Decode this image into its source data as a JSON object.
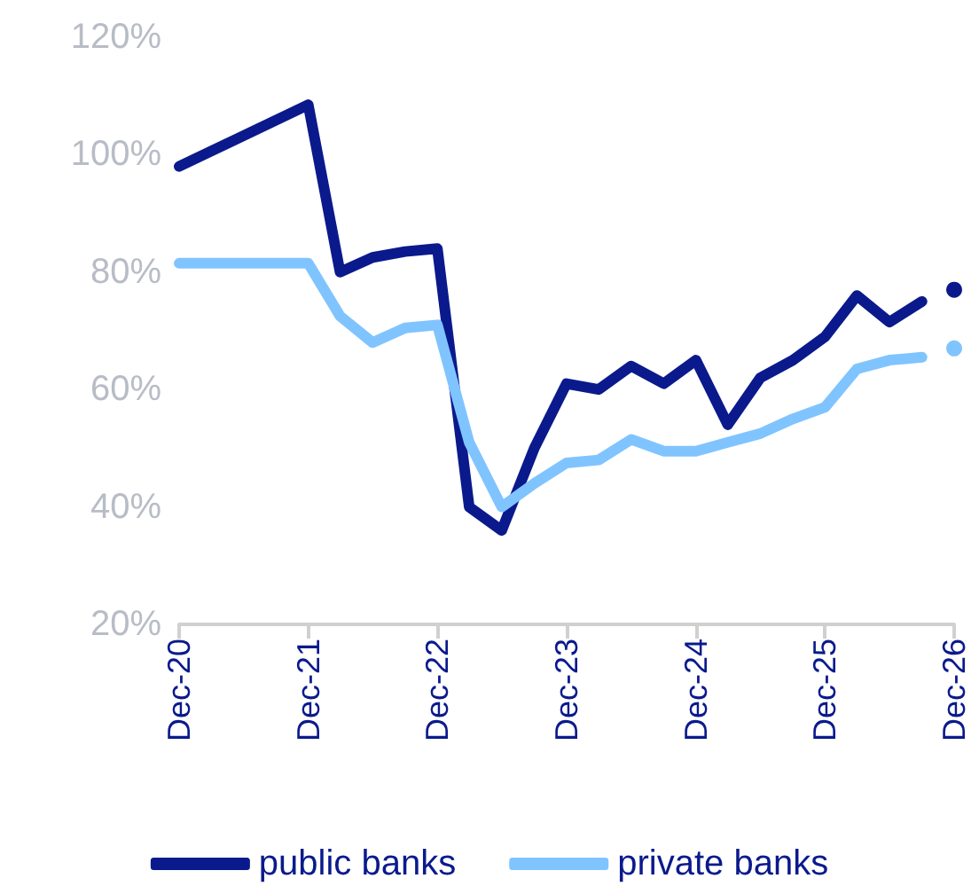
{
  "chart_data": {
    "type": "line",
    "xlim": [
      "2020-12",
      "2026-12"
    ],
    "xticks": [
      {
        "value": "2020-12",
        "label": "Dec-20"
      },
      {
        "value": "2021-12",
        "label": "Dec-21"
      },
      {
        "value": "2022-12",
        "label": "Dec-22"
      },
      {
        "value": "2023-12",
        "label": "Dec-23"
      },
      {
        "value": "2024-12",
        "label": "Dec-24"
      },
      {
        "value": "2025-12",
        "label": "Dec-25"
      },
      {
        "value": "2026-12",
        "label": "Dec-26"
      }
    ],
    "ylim": [
      20,
      120
    ],
    "yticks": [
      {
        "value": 20,
        "label": "20%"
      },
      {
        "value": 40,
        "label": "40%"
      },
      {
        "value": 60,
        "label": "60%"
      },
      {
        "value": 80,
        "label": "80%"
      },
      {
        "value": 100,
        "label": "100%"
      },
      {
        "value": 120,
        "label": "120%"
      }
    ],
    "grid": false,
    "legend": "bottom",
    "line_style": "solid",
    "series": [
      {
        "name": "public banks",
        "color": "#0a1a8c",
        "marker": "none",
        "x": [
          "2020-12",
          "2021-12",
          "2022-03",
          "2022-06",
          "2022-09",
          "2022-12",
          "2023-03",
          "2023-06",
          "2023-09",
          "2023-12",
          "2024-03",
          "2024-06",
          "2024-09",
          "2024-12",
          "2025-03",
          "2025-06",
          "2025-09",
          "2025-12",
          "2026-03",
          "2026-06",
          "2026-09"
        ],
        "values": [
          98,
          108.5,
          80,
          82.5,
          83.5,
          84,
          40,
          36,
          50,
          61,
          60,
          64,
          61,
          65,
          54,
          62,
          65,
          69,
          76,
          71.5,
          75
        ]
      },
      {
        "name": "private banks",
        "color": "#80c4ff",
        "marker": "none",
        "x": [
          "2020-12",
          "2021-12",
          "2022-03",
          "2022-06",
          "2022-09",
          "2022-12",
          "2023-03",
          "2023-06",
          "2023-09",
          "2023-12",
          "2024-03",
          "2024-06",
          "2024-09",
          "2024-12",
          "2025-03",
          "2025-06",
          "2025-09",
          "2025-12",
          "2026-03",
          "2026-06",
          "2026-09"
        ],
        "values": [
          81.5,
          81.5,
          72.5,
          68,
          70.5,
          71,
          51,
          40,
          44,
          47.5,
          48,
          51.5,
          49.5,
          49.5,
          51,
          52.5,
          55,
          57,
          63.5,
          65,
          65.5
        ]
      },
      {
        "type": "scatter",
        "color": "#0a1a8c",
        "marker": "circle",
        "x": [
          "2026-12"
        ],
        "values": [
          77
        ]
      },
      {
        "type": "scatter",
        "color": "#80c4ff",
        "marker": "circle",
        "x": [
          "2026-12"
        ],
        "values": [
          67
        ]
      }
    ]
  }
}
